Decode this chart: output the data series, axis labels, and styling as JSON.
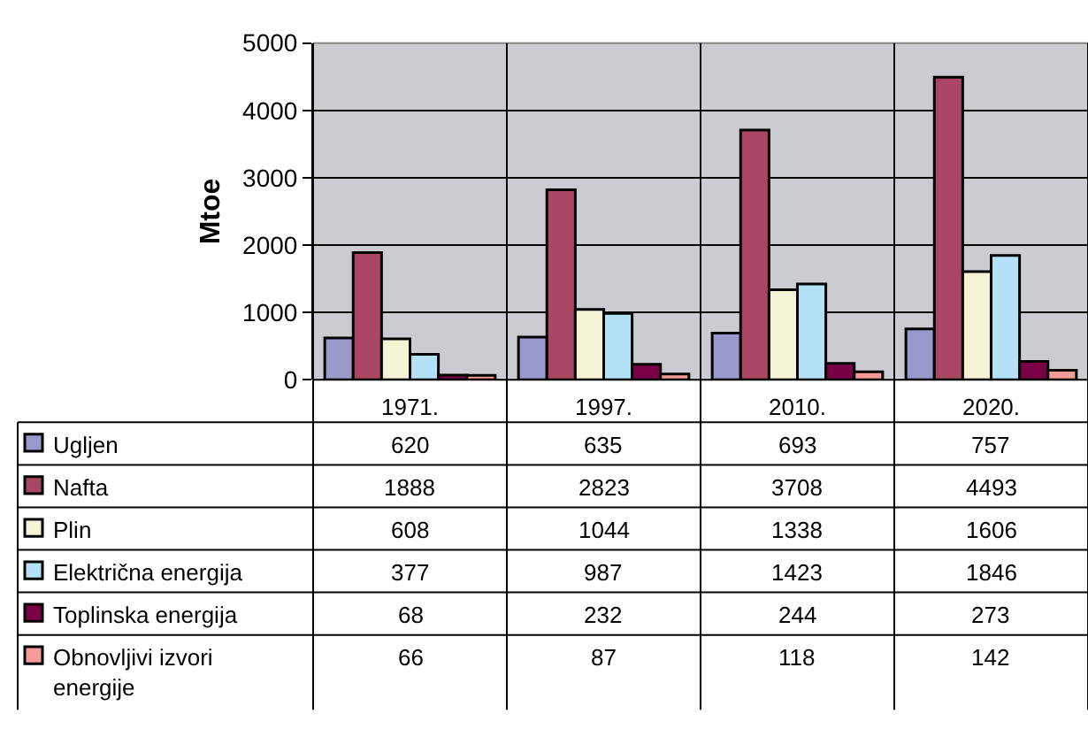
{
  "chart_data": {
    "type": "bar",
    "ylabel": "Mtoe",
    "categories": [
      "1971.",
      "1997.",
      "2010.",
      "2020."
    ],
    "series": [
      {
        "name": "Ugljen",
        "color": "#9999cc",
        "values": [
          620,
          635,
          693,
          757
        ]
      },
      {
        "name": "Nafta",
        "color": "#a94664",
        "values": [
          1888,
          2823,
          3708,
          4493
        ]
      },
      {
        "name": "Plin",
        "color": "#f5f3d6",
        "values": [
          608,
          1044,
          1338,
          1606
        ]
      },
      {
        "name": "Električna energija",
        "color": "#b3e2f7",
        "values": [
          377,
          987,
          1423,
          1846
        ]
      },
      {
        "name": "Toplinska energija",
        "color": "#7a0046",
        "values": [
          68,
          232,
          244,
          273
        ]
      },
      {
        "name": "Obnovljivi izvori energije",
        "color": "#f59c98",
        "values": [
          66,
          87,
          118,
          142
        ]
      }
    ],
    "ylim": [
      0,
      5000
    ],
    "yticks": [
      0,
      1000,
      2000,
      3000,
      4000,
      5000
    ],
    "grid": "y",
    "data_labels": true,
    "legend": "bottom left"
  }
}
